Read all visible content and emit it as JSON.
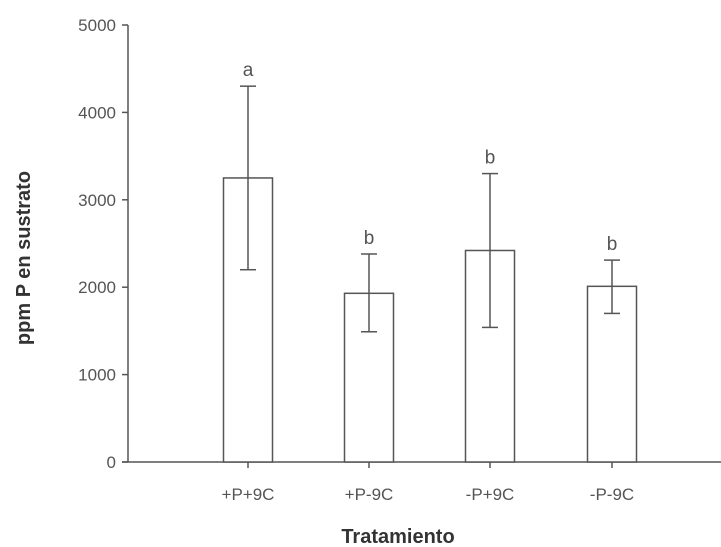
{
  "chart_data": {
    "type": "bar",
    "xlabel": "Tratamiento",
    "ylabel": "ppm P en sustrato",
    "ylim": [
      0,
      5000
    ],
    "yticks": [
      0,
      1000,
      2000,
      3000,
      4000,
      5000
    ],
    "categories": [
      "+P+9C",
      "+P-9C",
      "-P+9C",
      "-P-9C"
    ],
    "values": [
      3250,
      1930,
      2420,
      2010
    ],
    "error_low": [
      2200,
      1490,
      1540,
      1700
    ],
    "error_high": [
      4300,
      2380,
      3300,
      2310
    ],
    "significance_labels": [
      "a",
      "b",
      "b",
      "b"
    ],
    "grid": false,
    "bar_fill": "#ffffff",
    "stroke_color": "#555555"
  }
}
